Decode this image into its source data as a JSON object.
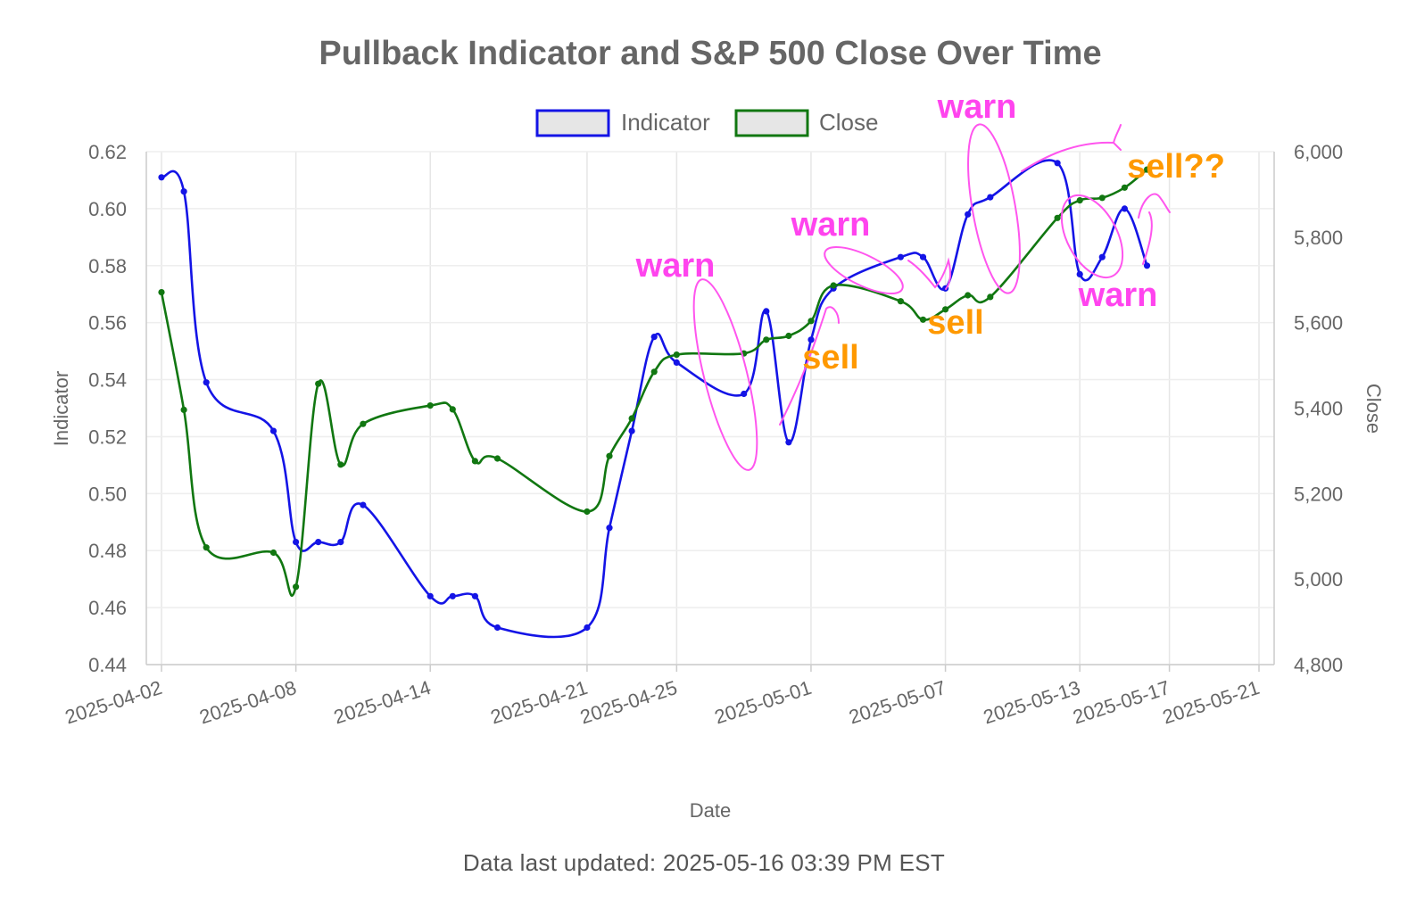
{
  "chart_data": {
    "type": "line",
    "title": "Pullback Indicator and S&P 500 Close Over Time",
    "xlabel": "Date",
    "ylabel_left": "Indicator",
    "ylabel_right": "Close",
    "x_ticks": [
      "2025-04-02",
      "2025-04-08",
      "2025-04-14",
      "2025-04-21",
      "2025-04-25",
      "2025-05-01",
      "2025-05-07",
      "2025-05-13",
      "2025-05-17",
      "2025-05-21"
    ],
    "ylim_left": [
      0.44,
      0.62
    ],
    "ylim_right": [
      4800,
      6000
    ],
    "y_ticks_left": [
      "0.44",
      "0.46",
      "0.48",
      "0.50",
      "0.52",
      "0.54",
      "0.56",
      "0.58",
      "0.60",
      "0.62"
    ],
    "y_ticks_right": [
      "4,800",
      "5,000",
      "5,200",
      "5,400",
      "5,600",
      "5,800",
      "6,000"
    ],
    "grid": true,
    "legend_position": "top-center",
    "dates": [
      "2025-04-02",
      "2025-04-03",
      "2025-04-04",
      "2025-04-07",
      "2025-04-08",
      "2025-04-09",
      "2025-04-10",
      "2025-04-11",
      "2025-04-14",
      "2025-04-15",
      "2025-04-16",
      "2025-04-17",
      "2025-04-21",
      "2025-04-22",
      "2025-04-23",
      "2025-04-24",
      "2025-04-25",
      "2025-04-28",
      "2025-04-29",
      "2025-04-30",
      "2025-05-01",
      "2025-05-02",
      "2025-05-05",
      "2025-05-06",
      "2025-05-07",
      "2025-05-08",
      "2025-05-09",
      "2025-05-12",
      "2025-05-13",
      "2025-05-14",
      "2025-05-15",
      "2025-05-16"
    ],
    "series": [
      {
        "name": "Indicator",
        "axis": "left",
        "color": "#1414e6",
        "values": [
          0.611,
          0.606,
          0.539,
          0.522,
          0.483,
          0.483,
          0.483,
          0.496,
          0.464,
          0.464,
          0.464,
          0.453,
          0.453,
          0.488,
          0.522,
          0.555,
          0.546,
          0.535,
          0.564,
          0.518,
          0.554,
          0.572,
          0.583,
          0.583,
          0.572,
          0.598,
          0.604,
          0.616,
          0.577,
          0.583,
          0.6,
          0.58
        ]
      },
      {
        "name": "Close",
        "axis": "right",
        "color": "#117711",
        "values": [
          5671,
          5396,
          5074,
          5062,
          4982,
          5457,
          5268,
          5363,
          5406,
          5397,
          5276,
          5282,
          5158,
          5288,
          5376,
          5485,
          5525,
          5528,
          5560,
          5569,
          5604,
          5687,
          5650,
          5607,
          5631,
          5664,
          5660,
          5845,
          5886,
          5892,
          5916,
          5958
        ]
      }
    ],
    "annotations": [
      {
        "text": "warn",
        "color": "#ff44ee"
      },
      {
        "text": "warn",
        "color": "#ff44ee"
      },
      {
        "text": "warn",
        "color": "#ff44ee"
      },
      {
        "text": "warn",
        "color": "#ff44ee"
      },
      {
        "text": "sell",
        "color": "#ff9900"
      },
      {
        "text": "sell",
        "color": "#ff9900"
      },
      {
        "text": "sell??",
        "color": "#ff9900"
      }
    ]
  },
  "footer": {
    "last_updated": "Data last updated: 2025-05-16 03:39 PM EST"
  }
}
